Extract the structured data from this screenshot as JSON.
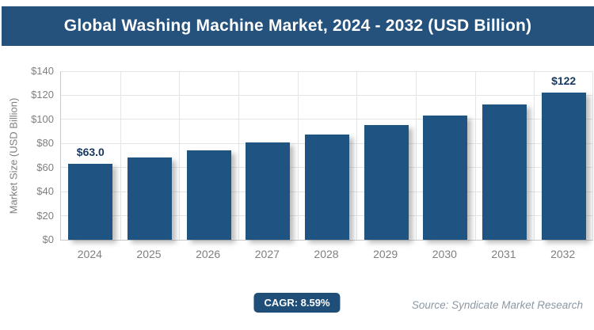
{
  "header": {
    "title": "Global Washing Machine Market, 2024 - 2032 (USD Billion)"
  },
  "chart_data": {
    "type": "bar",
    "title": "Global Washing Machine Market, 2024 - 2032 (USD Billion)",
    "xlabel": "",
    "ylabel": "Market Size (USD Billion)",
    "ylim": [
      0,
      140
    ],
    "ytick_step": 20,
    "ytick_prefix": "$",
    "grid": true,
    "legend": "none",
    "categories": [
      "2024",
      "2025",
      "2026",
      "2027",
      "2028",
      "2029",
      "2030",
      "2031",
      "2032"
    ],
    "values": [
      63.0,
      68.4,
      74.3,
      80.7,
      87.6,
      95.1,
      103.3,
      112.2,
      122.0
    ],
    "data_labels": [
      "$63.0",
      "",
      "",
      "",
      "",
      "",
      "",
      "",
      "$122"
    ]
  },
  "footer": {
    "cagr_label": "CAGR: 8.59%",
    "source": "Source: Syndicate Market Research"
  },
  "colors": {
    "header_bg": "#24527d",
    "bar": "#1f5382",
    "badge_bg": "#1f4e79",
    "data_label": "#17375e",
    "tick_text": "#7f7f7f",
    "gridline": "#e4e4e4",
    "axis_line": "#c6c9cc",
    "source_text": "#8b98a3"
  }
}
